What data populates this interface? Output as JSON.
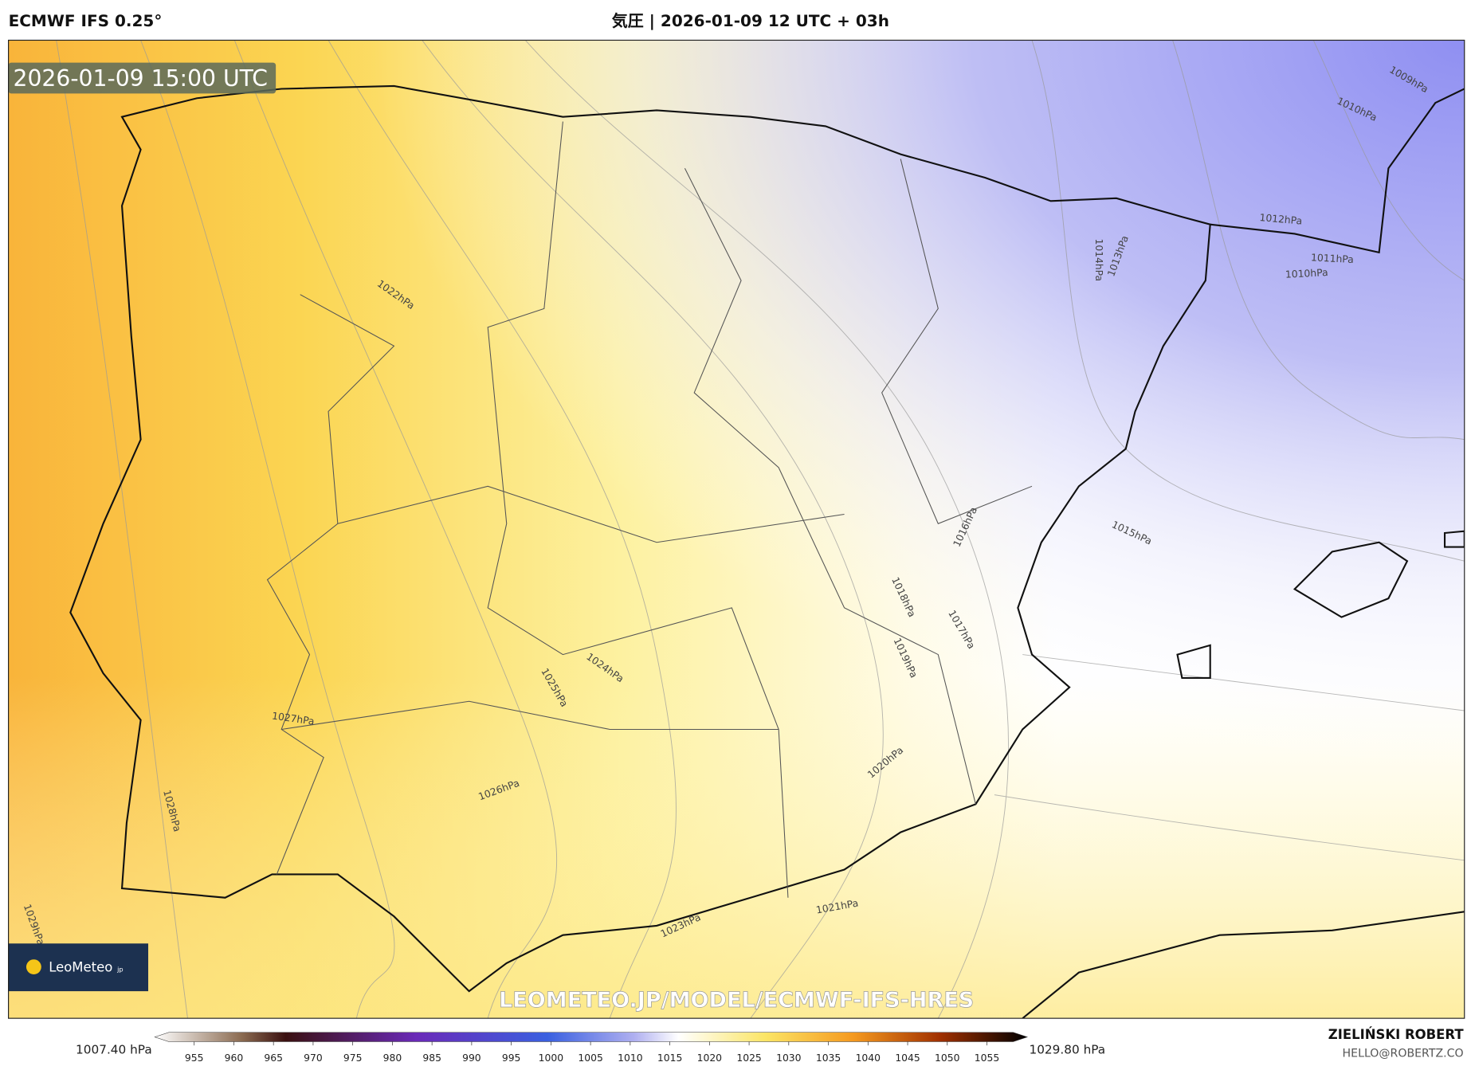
{
  "header": {
    "model": "ECMWF IFS 0.25°",
    "title": "気圧 | 2026-01-09 12 UTC + 03h"
  },
  "map": {
    "valid_time": "2026-01-09 15:00 UTC",
    "isobar_labels": [
      "1009hPa",
      "1010hPa",
      "1012hPa",
      "1011hPa",
      "1010hPa",
      "1014hPa",
      "1013hPa",
      "1022hPa",
      "1016hPa",
      "1015hPa",
      "1018hPa",
      "1017hPa",
      "1019hPa",
      "1024hPa",
      "1025hPa",
      "1027hPa",
      "1020hPa",
      "1026hPa",
      "1028hPa",
      "1021hPa",
      "1023hPa",
      "1029hPa"
    ],
    "watermark": "LEOMETEO.JP/MODEL/ECMWF-IFS-HRES",
    "logo": {
      "name": "LeoMeteo",
      "suffix": "jp"
    }
  },
  "colorbar": {
    "min_label": "1007.40 hPa",
    "max_label": "1029.80 hPa",
    "ticks": [
      955,
      960,
      965,
      970,
      975,
      980,
      985,
      990,
      995,
      1000,
      1005,
      1010,
      1015,
      1020,
      1025,
      1030,
      1035,
      1040,
      1045,
      1050,
      1055
    ]
  },
  "footer": {
    "author": "ZIELIŃSKI ROBERT",
    "email": "HELLO@ROBERTZ.CO"
  }
}
